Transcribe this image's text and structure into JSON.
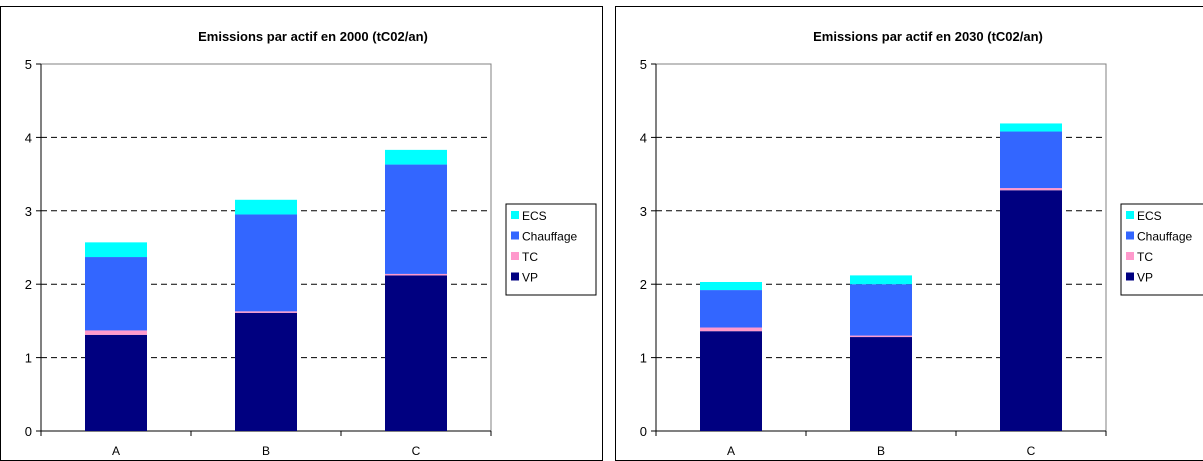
{
  "chart_data": [
    {
      "type": "bar",
      "stacked": true,
      "title": "Emissions par actif en 2000 (tC02/an)",
      "categories": [
        "A",
        "B",
        "C"
      ],
      "ylim": [
        0,
        5
      ],
      "yticks": [
        "0",
        "1",
        "2",
        "3",
        "4",
        "5"
      ],
      "grid": "dashed horizontal",
      "legend": "right",
      "series": [
        {
          "name": "VP",
          "color": "#000080",
          "values": [
            1.31,
            1.61,
            2.12
          ]
        },
        {
          "name": "TC",
          "color": "#ff99cc",
          "values": [
            0.06,
            0.02,
            0.02
          ]
        },
        {
          "name": "Chauffage",
          "color": "#3366ff",
          "values": [
            1.0,
            1.32,
            1.49
          ]
        },
        {
          "name": "ECS",
          "color": "#00ffff",
          "values": [
            0.2,
            0.2,
            0.2
          ]
        }
      ]
    },
    {
      "type": "bar",
      "stacked": true,
      "title": "Emissions par actif en 2030 (tC02/an)",
      "categories": [
        "A",
        "B",
        "C"
      ],
      "ylim": [
        0,
        5
      ],
      "yticks": [
        "0",
        "1",
        "2",
        "3",
        "4",
        "5"
      ],
      "grid": "dashed horizontal",
      "legend": "right",
      "series": [
        {
          "name": "VP",
          "color": "#000080",
          "values": [
            1.36,
            1.28,
            3.28
          ]
        },
        {
          "name": "TC",
          "color": "#ff99cc",
          "values": [
            0.05,
            0.02,
            0.03
          ]
        },
        {
          "name": "Chauffage",
          "color": "#3366ff",
          "values": [
            0.51,
            0.7,
            0.77
          ]
        },
        {
          "name": "ECS",
          "color": "#00ffff",
          "values": [
            0.11,
            0.12,
            0.11
          ]
        }
      ]
    }
  ]
}
